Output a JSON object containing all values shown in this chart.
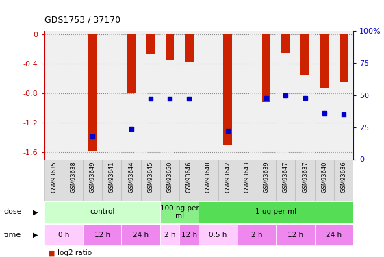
{
  "title": "GDS1753 / 37170",
  "samples": [
    "GSM93635",
    "GSM93638",
    "GSM93649",
    "GSM93641",
    "GSM93644",
    "GSM93645",
    "GSM93650",
    "GSM93646",
    "GSM93648",
    "GSM93642",
    "GSM93643",
    "GSM93639",
    "GSM93647",
    "GSM93637",
    "GSM93640",
    "GSM93636"
  ],
  "log2_ratio": [
    0,
    0,
    -1.58,
    0,
    -0.8,
    -0.27,
    -0.35,
    -0.37,
    0,
    -1.5,
    0,
    -0.92,
    -0.25,
    -0.55,
    -0.72,
    -0.65
  ],
  "percentile": [
    null,
    null,
    18,
    null,
    24,
    47,
    47,
    47,
    null,
    22,
    null,
    48,
    50,
    48,
    36,
    35
  ],
  "dose_groups": [
    {
      "label": "control",
      "start": 0,
      "end": 6,
      "color": "#ccffcc"
    },
    {
      "label": "100 ng per\nml",
      "start": 6,
      "end": 8,
      "color": "#88ee88"
    },
    {
      "label": "1 ug per ml",
      "start": 8,
      "end": 16,
      "color": "#55dd55"
    }
  ],
  "time_groups": [
    {
      "label": "0 h",
      "start": 0,
      "end": 2,
      "color": "#ffccff"
    },
    {
      "label": "12 h",
      "start": 2,
      "end": 4,
      "color": "#ee88ee"
    },
    {
      "label": "24 h",
      "start": 4,
      "end": 6,
      "color": "#ee88ee"
    },
    {
      "label": "2 h",
      "start": 6,
      "end": 7,
      "color": "#ffccff"
    },
    {
      "label": "12 h",
      "start": 7,
      "end": 8,
      "color": "#ee88ee"
    },
    {
      "label": "0.5 h",
      "start": 8,
      "end": 10,
      "color": "#ffccff"
    },
    {
      "label": "2 h",
      "start": 10,
      "end": 12,
      "color": "#ee88ee"
    },
    {
      "label": "12 h",
      "start": 12,
      "end": 14,
      "color": "#ee88ee"
    },
    {
      "label": "24 h",
      "start": 14,
      "end": 16,
      "color": "#ee88ee"
    }
  ],
  "ylim_left": [
    -1.7,
    0.05
  ],
  "ylim_right": [
    0,
    100
  ],
  "yticks_left": [
    0,
    -0.4,
    -0.8,
    -1.2,
    -1.6
  ],
  "yticks_right": [
    0,
    25,
    50,
    75,
    100
  ],
  "bar_color": "#cc2200",
  "dot_color": "#0000cc",
  "bg_color": "#ffffff",
  "plot_bg": "#f0f0f0",
  "grid_color": "#888888",
  "label_color_left": "#cc0000",
  "label_color_right": "#0000cc",
  "bar_width": 0.45,
  "sample_box_color": "#dddddd",
  "sample_box_edge": "#bbbbbb"
}
